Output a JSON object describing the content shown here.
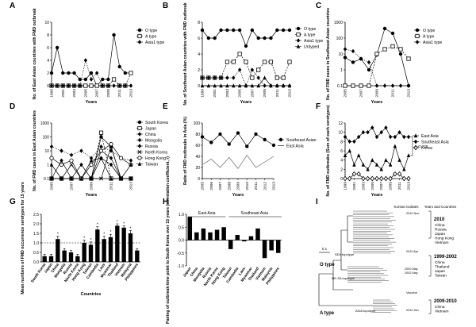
{
  "colors": {
    "line": "#000000",
    "gray": "#666666",
    "bar": "#000000"
  },
  "chart_data": [
    {
      "panel": "A",
      "type": "line",
      "ylabel": "No. of East Asian countries with FMD outbreak",
      "xlabel": "Years",
      "x": [
        1999,
        2000,
        2001,
        2002,
        2003,
        2004,
        2005,
        2006,
        2007,
        2008,
        2009,
        2010,
        2011,
        2012,
        2013
      ],
      "xticks": [
        "1999",
        "2001",
        "2003",
        "2005",
        "2007",
        "2009",
        "2011",
        "2013"
      ],
      "yticks": [
        "0",
        "2",
        "4",
        "6",
        "8",
        "10"
      ],
      "ylim": [
        0,
        10
      ],
      "legend": [
        "O type",
        "A type",
        "Asia1 type"
      ],
      "series": [
        {
          "name": "O type",
          "marker": "circle",
          "values": [
            2,
            6,
            2,
            2,
            2,
            1,
            1,
            2,
            0,
            1,
            1,
            8,
            3,
            2,
            2
          ]
        },
        {
          "name": "A type",
          "marker": "square",
          "values": [
            0,
            0,
            0,
            0,
            0,
            0,
            0,
            0,
            0,
            0,
            0,
            1,
            0,
            0,
            2
          ]
        },
        {
          "name": "Asia1 type",
          "marker": "diamond",
          "values": [
            0,
            0,
            0,
            0,
            0,
            0,
            4,
            1,
            2,
            0,
            0,
            0,
            0,
            0,
            0
          ]
        }
      ]
    },
    {
      "panel": "B",
      "type": "line",
      "ylabel": "No. of Southeast Asian countries with FMD outbreak",
      "xlabel": "Years",
      "x": [
        1999,
        2000,
        2001,
        2002,
        2003,
        2004,
        2005,
        2006,
        2007,
        2008,
        2009,
        2010,
        2011,
        2012,
        2013
      ],
      "xticks": [
        "1999",
        "2001",
        "2003",
        "2005",
        "2007",
        "2009",
        "2011",
        "2013"
      ],
      "yticks": [
        "0",
        "2",
        "4",
        "6",
        "8"
      ],
      "ylim": [
        0,
        8
      ],
      "legend": [
        "O type",
        "A type",
        "Asia1 type",
        "Untyped"
      ],
      "series": [
        {
          "name": "O type",
          "marker": "circle",
          "values": [
            7,
            6,
            6,
            7,
            7,
            7,
            7,
            5,
            7,
            6,
            6,
            6,
            7,
            7,
            7
          ]
        },
        {
          "name": "A type",
          "marker": "square",
          "values": [
            1,
            1,
            1,
            1,
            3,
            3,
            4,
            3,
            1,
            2,
            3,
            3,
            1,
            1,
            3
          ]
        },
        {
          "name": "Asia1 type",
          "marker": "diamond",
          "values": [
            1,
            1,
            1,
            1,
            1,
            1,
            2,
            0,
            2,
            1,
            0,
            0,
            0,
            0,
            0
          ]
        },
        {
          "name": "Untyped",
          "marker": "triangle",
          "values": [
            0,
            0,
            0,
            0,
            0,
            0,
            0,
            0,
            0,
            0,
            1,
            0,
            0,
            0,
            0
          ]
        }
      ]
    },
    {
      "panel": "C",
      "type": "line",
      "scale": "log",
      "ylabel": "No. of FMD cases in Southeast Asian countries",
      "xlabel": "Years",
      "x": [
        2005,
        2006,
        2007,
        2008,
        2009,
        2010,
        2011,
        2012,
        2013
      ],
      "xticks": [
        "2005",
        "2007",
        "2009",
        "2011",
        "2013"
      ],
      "yticks": [
        "0.1",
        "1",
        "10",
        "100",
        "1000"
      ],
      "ylim": [
        0.1,
        1000
      ],
      "legend": [
        "O type",
        "A type",
        "Asia1 type"
      ],
      "series": [
        {
          "name": "O type",
          "marker": "circle",
          "values": [
            6,
            3,
            5,
            1,
            9,
            400,
            200,
            10,
            0.1
          ]
        },
        {
          "name": "A type",
          "marker": "square",
          "values": [
            0.1,
            0.1,
            0.1,
            0.1,
            10,
            20,
            30,
            20,
            5
          ]
        },
        {
          "name": "Asia1 type",
          "marker": "diamond",
          "values": [
            20,
            15,
            5,
            3,
            0.1,
            0.1,
            0.1,
            0.1,
            0.1
          ]
        }
      ]
    },
    {
      "panel": "D",
      "type": "line",
      "scale": "log",
      "ylabel": "No. of FMD cases in East Asian countries",
      "xlabel": "Years",
      "x": [
        2005,
        2006,
        2007,
        2008,
        2009,
        2010,
        2011,
        2012,
        2013
      ],
      "xticks": [
        "2005",
        "2007",
        "2009",
        "2011",
        "2013"
      ],
      "yticks": [
        "0.1",
        "1",
        "10",
        "100",
        "1000"
      ],
      "ylim": [
        0.1,
        1000
      ],
      "legend": [
        "South Korea",
        "Japan",
        "China",
        "Mongolia",
        "Russia",
        "North Korea",
        "Hong Kong",
        "Taiwan"
      ],
      "series": [
        {
          "name": "South Korea",
          "marker": "circle",
          "values": [
            0.1,
            0.1,
            0.1,
            0.1,
            0.1,
            100,
            20,
            0.1,
            0.1
          ]
        },
        {
          "name": "Japan",
          "marker": "square",
          "values": [
            0.1,
            0.1,
            0.1,
            0.1,
            0.1,
            200,
            0.1,
            0.1,
            0.1
          ]
        },
        {
          "name": "China",
          "marker": "diamond",
          "values": [
            20,
            10,
            5,
            10,
            3,
            20,
            10,
            3,
            2
          ]
        },
        {
          "name": "Mongolia",
          "marker": "diamond",
          "values": [
            0.1,
            0.1,
            0.1,
            0.1,
            0.1,
            10,
            3,
            0.1,
            0.1
          ]
        },
        {
          "name": "Russia",
          "marker": "diamond",
          "values": [
            0.1,
            2,
            0.1,
            1,
            0.1,
            3,
            1,
            0.1,
            0.1
          ]
        },
        {
          "name": "North Korea",
          "marker": "cross",
          "values": [
            0.1,
            0.1,
            1,
            0.1,
            0.1,
            0.1,
            20,
            0.1,
            0.1
          ]
        },
        {
          "name": "Hong Kong",
          "marker": "circle-open",
          "values": [
            3,
            1,
            2,
            0.1,
            1,
            10,
            30,
            3,
            1
          ]
        },
        {
          "name": "Taiwan",
          "marker": "triangle",
          "values": [
            1,
            0.1,
            0.1,
            0.1,
            2,
            3,
            0.1,
            0.1,
            1
          ]
        }
      ]
    },
    {
      "panel": "E",
      "type": "line",
      "ylabel": "Ratio of FMD outbreaks in Asia (%)",
      "xlabel": "Years",
      "x": [
        2005,
        2006,
        2007,
        2008,
        2009,
        2010,
        2011,
        2012,
        2013
      ],
      "xticks": [
        "2005",
        "2006",
        "2007",
        "2008",
        "2009",
        "2010",
        "2011",
        "2012",
        "2013"
      ],
      "yticks": [
        "0",
        "20",
        "40",
        "60",
        "80",
        "100"
      ],
      "ylim": [
        0,
        100
      ],
      "legend": [
        "Southeast Asian",
        "East Asia"
      ],
      "series": [
        {
          "name": "Southeast Asian",
          "marker": "circle",
          "values": [
            75,
            65,
            80,
            62,
            82,
            58,
            80,
            70,
            60
          ]
        },
        {
          "name": "East Asia",
          "marker": "none",
          "values": [
            25,
            35,
            20,
            38,
            18,
            42,
            20,
            30,
            40
          ]
        }
      ]
    },
    {
      "panel": "F",
      "type": "line",
      "ylabel": "No. of FMD outbreaks (Sum of each serotypes)",
      "xlabel": "Years",
      "x": [
        1999,
        2000,
        2001,
        2002,
        2003,
        2004,
        2005,
        2006,
        2007,
        2008,
        2009,
        2010,
        2011,
        2012,
        2013
      ],
      "xticks": [
        "1999",
        "2001",
        "2003",
        "2005",
        "2007",
        "2009",
        "2011",
        "2013"
      ],
      "yticks": [
        "0",
        "2",
        "4",
        "6",
        "8",
        "10",
        "12"
      ],
      "ylim": [
        0,
        12
      ],
      "legend": [
        "East Asia",
        "Southeast Asia",
        "Korea"
      ],
      "annotation": "r=0.725",
      "series": [
        {
          "name": "East Asia",
          "marker": "triangle",
          "values": [
            5,
            6,
            3,
            5,
            3,
            2,
            4,
            3,
            2,
            4,
            3,
            7,
            4,
            2,
            5
          ]
        },
        {
          "name": "Southeast Asia",
          "marker": "diamond",
          "values": [
            9,
            8,
            8,
            9,
            10,
            10,
            11,
            9,
            10,
            11,
            9,
            9,
            10,
            9,
            9
          ]
        },
        {
          "name": "Korea",
          "marker": "diamond-open",
          "values": [
            0,
            0,
            1,
            1,
            0,
            0,
            0,
            0,
            0,
            0,
            0,
            1,
            1,
            0,
            0
          ]
        }
      ]
    },
    {
      "panel": "G",
      "type": "bar",
      "ylabel": "Mean numbers of FMD occurrence serotypes for 15 years",
      "xlabel": "Countries",
      "categories": [
        "South Korea",
        "Japan",
        "China",
        "Mongolia",
        "Russia",
        "North Korea",
        "Hong Kong",
        "Taiwan",
        "Cambodia",
        "Laos",
        "Myanmar",
        "Thailand",
        "Vietnam",
        "Malaysia",
        "Philippines"
      ],
      "values": [
        0.3,
        0.3,
        1.2,
        0.6,
        0.5,
        0.3,
        1.0,
        0.9,
        1.7,
        1.2,
        1.3,
        1.9,
        1.8,
        1.5,
        0.6
      ],
      "errors": [
        0.1,
        0.1,
        0.15,
        0.1,
        0.1,
        0.1,
        0.15,
        0.15,
        0.15,
        0.15,
        0.15,
        0.1,
        0.1,
        0.15,
        0.1
      ],
      "significant": [
        false,
        false,
        true,
        false,
        false,
        false,
        true,
        true,
        true,
        true,
        true,
        true,
        true,
        true,
        false
      ],
      "reference_line": 1.0,
      "yticks": [
        "0.0",
        "0.5",
        "1.0",
        "1.5",
        "2.0",
        "2.5"
      ],
      "ylim": [
        0,
        2.5
      ]
    },
    {
      "panel": "H",
      "type": "bar",
      "ylabel": "Pairing of outbreak-time point to South Korea over 15 years (correlation coefficient, r)",
      "groups": [
        "East Asia",
        "Southeast Asia"
      ],
      "categories": [
        "Japan",
        "China",
        "Mongolia",
        "Russia",
        "North Korea",
        "Hong Kong",
        "Taiwan",
        "Cambodia",
        "Laos",
        "Myanmar",
        "Thailand",
        "Vietnam",
        "Malaysia",
        "Philippines"
      ],
      "values": [
        0.9,
        0.3,
        0.45,
        0.3,
        0.4,
        0.5,
        -0.35,
        0.2,
        -0.05,
        0.15,
        0.45,
        -0.7,
        -0.4,
        -0.5
      ],
      "yticks": [
        "-1.0",
        "-0.5",
        "0.0",
        "0.5",
        "1.0"
      ],
      "ylim": [
        -1,
        1
      ]
    }
  ],
  "tree": {
    "panel": "I",
    "headers": [
      "Korean isolates",
      "Years and Countries"
    ],
    "scale_label": "0.1",
    "clades": [
      "O type",
      "SEA topotype",
      "ME-SA topotype",
      "A type",
      "ASIA topotype",
      "Vaccine"
    ],
    "groups": [
      {
        "years": "2010",
        "countries": [
          "China",
          "Russia",
          "Japan",
          "Hong Kong",
          "Vietnam"
        ]
      },
      {
        "years": "1999-2002",
        "countries": [
          "China",
          "Thailand",
          "Japan",
          "Taiwan"
        ]
      },
      {
        "years": "2009-2010",
        "countries": [
          "China",
          "Vietnam"
        ]
      }
    ],
    "korean_marks": [
      "2010 Nov",
      "2010 Apr",
      "2000 May",
      "2002 May",
      "2010 Jan"
    ]
  }
}
